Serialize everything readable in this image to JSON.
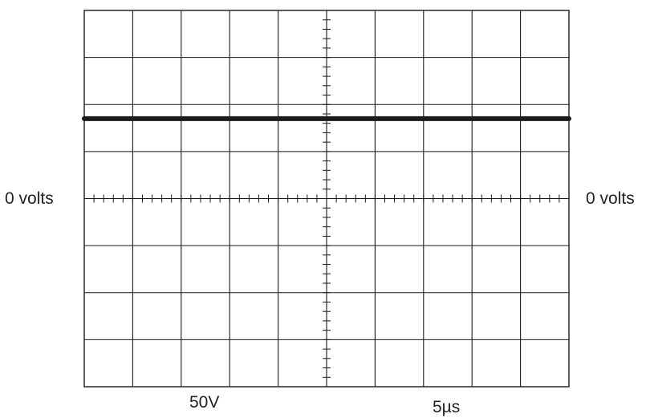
{
  "labels": {
    "left_zero": "0 volts",
    "right_zero": "0 volts",
    "volts_per_div": "50V",
    "time_per_div": "5µs"
  },
  "scope": {
    "divisions_x": 10,
    "divisions_y": 8,
    "minor_ticks_per_div": 5,
    "zero_division_from_top": 4,
    "trace_level_divisions": 1.7,
    "colors": {
      "grid": "#1a1a1a",
      "trace": "#1a1a1a",
      "background": "#ffffff"
    }
  }
}
